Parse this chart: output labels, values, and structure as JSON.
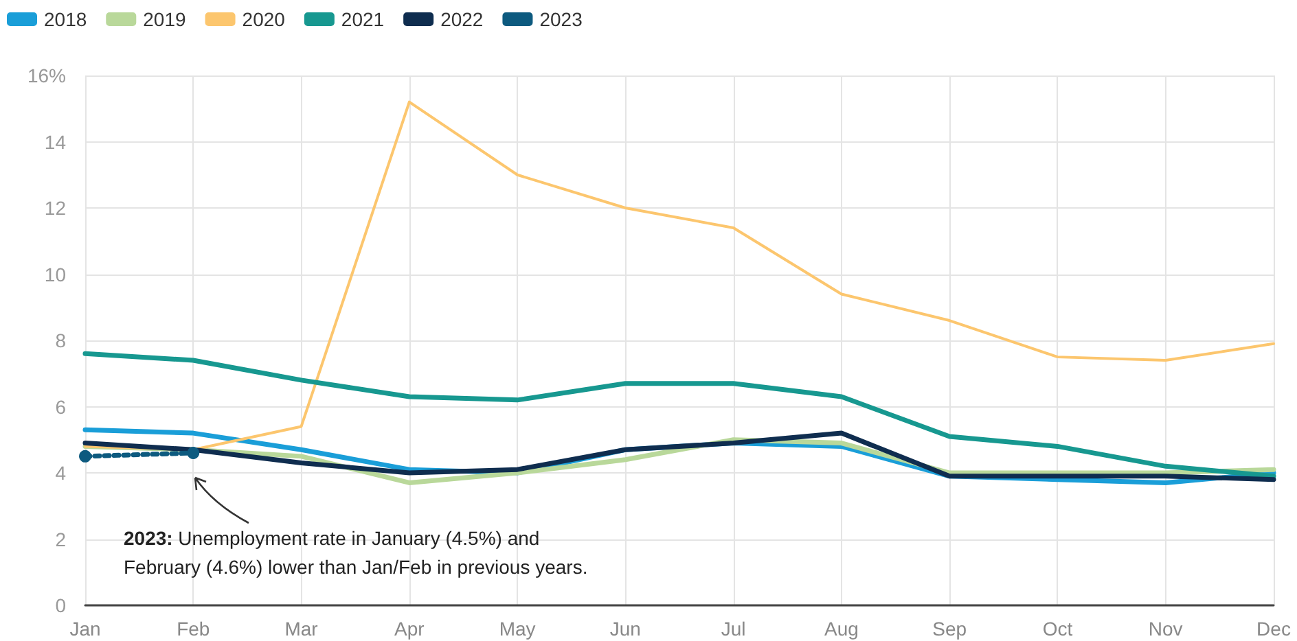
{
  "chart_data": {
    "type": "line",
    "categories": [
      "Jan",
      "Feb",
      "Mar",
      "Apr",
      "May",
      "Jun",
      "Jul",
      "Aug",
      "Sep",
      "Oct",
      "Nov",
      "Dec"
    ],
    "series": [
      {
        "name": "2018",
        "color": "#1a9ed8",
        "values": [
          5.3,
          5.2,
          4.7,
          4.1,
          4.0,
          4.7,
          4.9,
          4.8,
          3.9,
          3.8,
          3.7,
          4.0
        ]
      },
      {
        "name": "2019",
        "color": "#b9d89a",
        "values": [
          4.8,
          4.7,
          4.5,
          3.7,
          4.0,
          4.4,
          5.0,
          4.9,
          4.0,
          4.0,
          4.0,
          4.1
        ]
      },
      {
        "name": "2020",
        "color": "#fcc66e",
        "values": [
          4.8,
          4.7,
          5.4,
          15.2,
          13.0,
          12.0,
          11.4,
          9.4,
          8.6,
          7.5,
          7.4,
          7.9
        ]
      },
      {
        "name": "2021",
        "color": "#179890",
        "values": [
          7.6,
          7.4,
          6.8,
          6.3,
          6.2,
          6.7,
          6.7,
          6.3,
          5.1,
          4.8,
          4.2,
          3.9
        ]
      },
      {
        "name": "2022",
        "color": "#0f2d4f",
        "values": [
          4.9,
          4.7,
          4.3,
          4.0,
          4.1,
          4.7,
          4.9,
          5.2,
          3.9,
          3.9,
          3.9,
          3.8
        ]
      },
      {
        "name": "2023",
        "color": "#0d5a7f",
        "values": [
          4.5,
          4.6,
          null,
          null,
          null,
          null,
          null,
          null,
          null,
          null,
          null,
          null
        ],
        "marker": "circle",
        "line_style": "dotted"
      }
    ],
    "ylim": [
      0,
      16
    ],
    "yticks": [
      0,
      2,
      4,
      6,
      8,
      10,
      12,
      14,
      {
        "value": 16,
        "label": "16%"
      }
    ],
    "grid": true,
    "legend": "top left",
    "annotations": [
      "2023: Unemployment rate in January (4.5%) and February (4.6%) lower than Jan/Feb in previous years."
    ]
  }
}
